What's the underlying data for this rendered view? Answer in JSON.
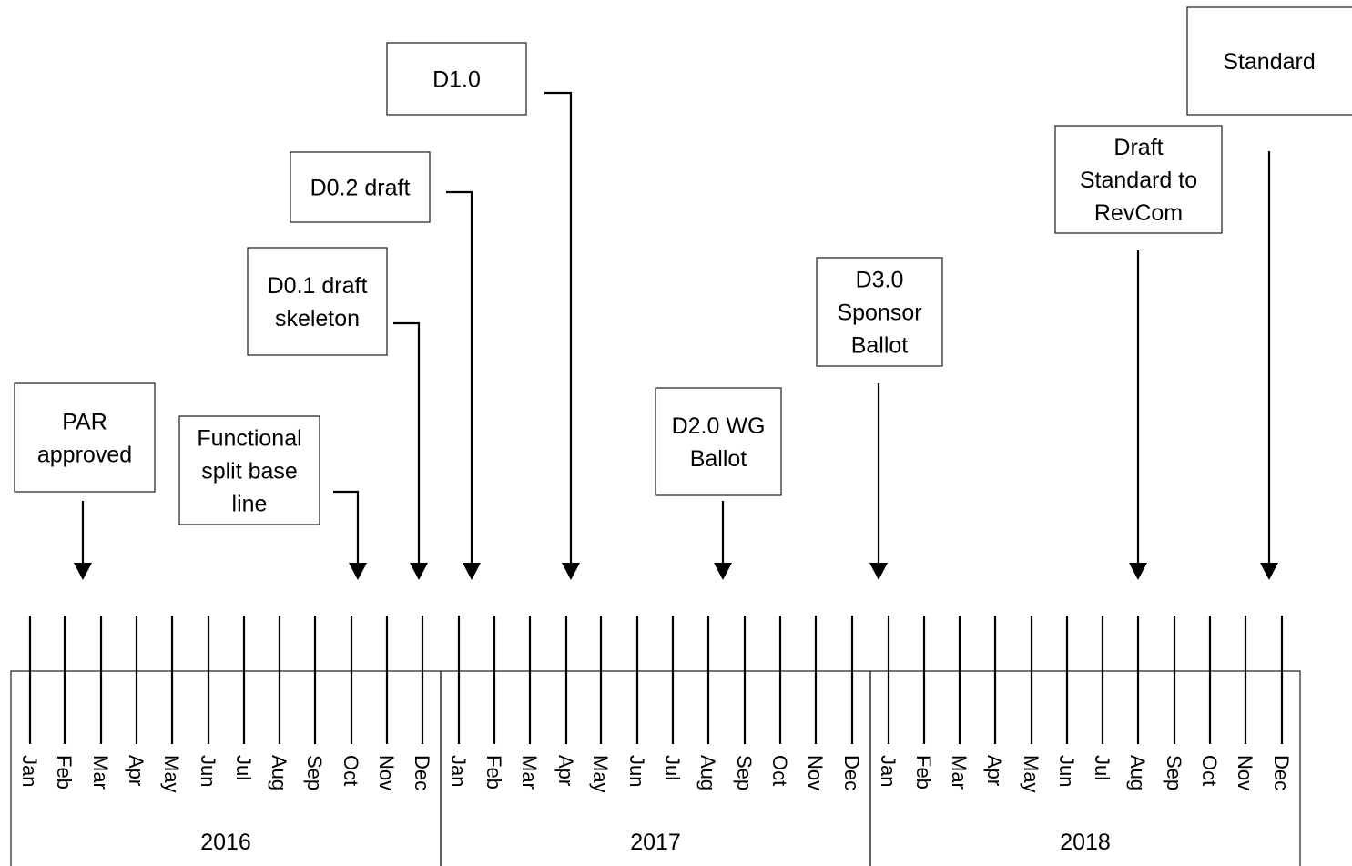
{
  "years": [
    {
      "label": "2016",
      "months": [
        "Jan",
        "Feb",
        "Mar",
        "Apr",
        "May",
        "Jun",
        "Jul",
        "Aug",
        "Sep",
        "Oct",
        "Nov",
        "Dec"
      ]
    },
    {
      "label": "2017",
      "months": [
        "Jan",
        "Feb",
        "Mar",
        "Apr",
        "May",
        "Jun",
        "Jul",
        "Aug",
        "Sep",
        "Oct",
        "Nov",
        "Dec"
      ]
    },
    {
      "label": "2018",
      "months": [
        "Jan",
        "Feb",
        "Mar",
        "Apr",
        "May",
        "Jun",
        "Jul",
        "Aug",
        "Sep",
        "Oct",
        "Nov",
        "Dec"
      ]
    }
  ],
  "milestones": [
    {
      "id": "par-approved",
      "lines": [
        "PAR",
        "approved"
      ],
      "year": "2016",
      "month": "Feb"
    },
    {
      "id": "functional-split",
      "lines": [
        "Functional",
        "split base",
        "line"
      ],
      "year": "2016",
      "month": "Oct"
    },
    {
      "id": "d01-draft",
      "lines": [
        "D0.1 draft",
        "skeleton"
      ],
      "year": "2016",
      "month": "Dec"
    },
    {
      "id": "d02-draft",
      "lines": [
        "D0.2 draft"
      ],
      "year": "2017",
      "month": "Jan"
    },
    {
      "id": "d10",
      "lines": [
        "D1.0"
      ],
      "year": "2017",
      "month": "Apr"
    },
    {
      "id": "d20-wg-ballot",
      "lines": [
        "D2.0 WG",
        "Ballot"
      ],
      "year": "2017",
      "month": "Aug"
    },
    {
      "id": "d30-sponsor-ballot",
      "lines": [
        "D3.0",
        "Sponsor",
        "Ballot"
      ],
      "year": "2018",
      "month": "Jan"
    },
    {
      "id": "draft-to-revcom",
      "lines": [
        "Draft",
        "Standard to",
        "RevCom"
      ],
      "year": "2018",
      "month": "Aug"
    },
    {
      "id": "standard",
      "lines": [
        "Standard"
      ],
      "year": "2018",
      "month": "Dec"
    }
  ]
}
